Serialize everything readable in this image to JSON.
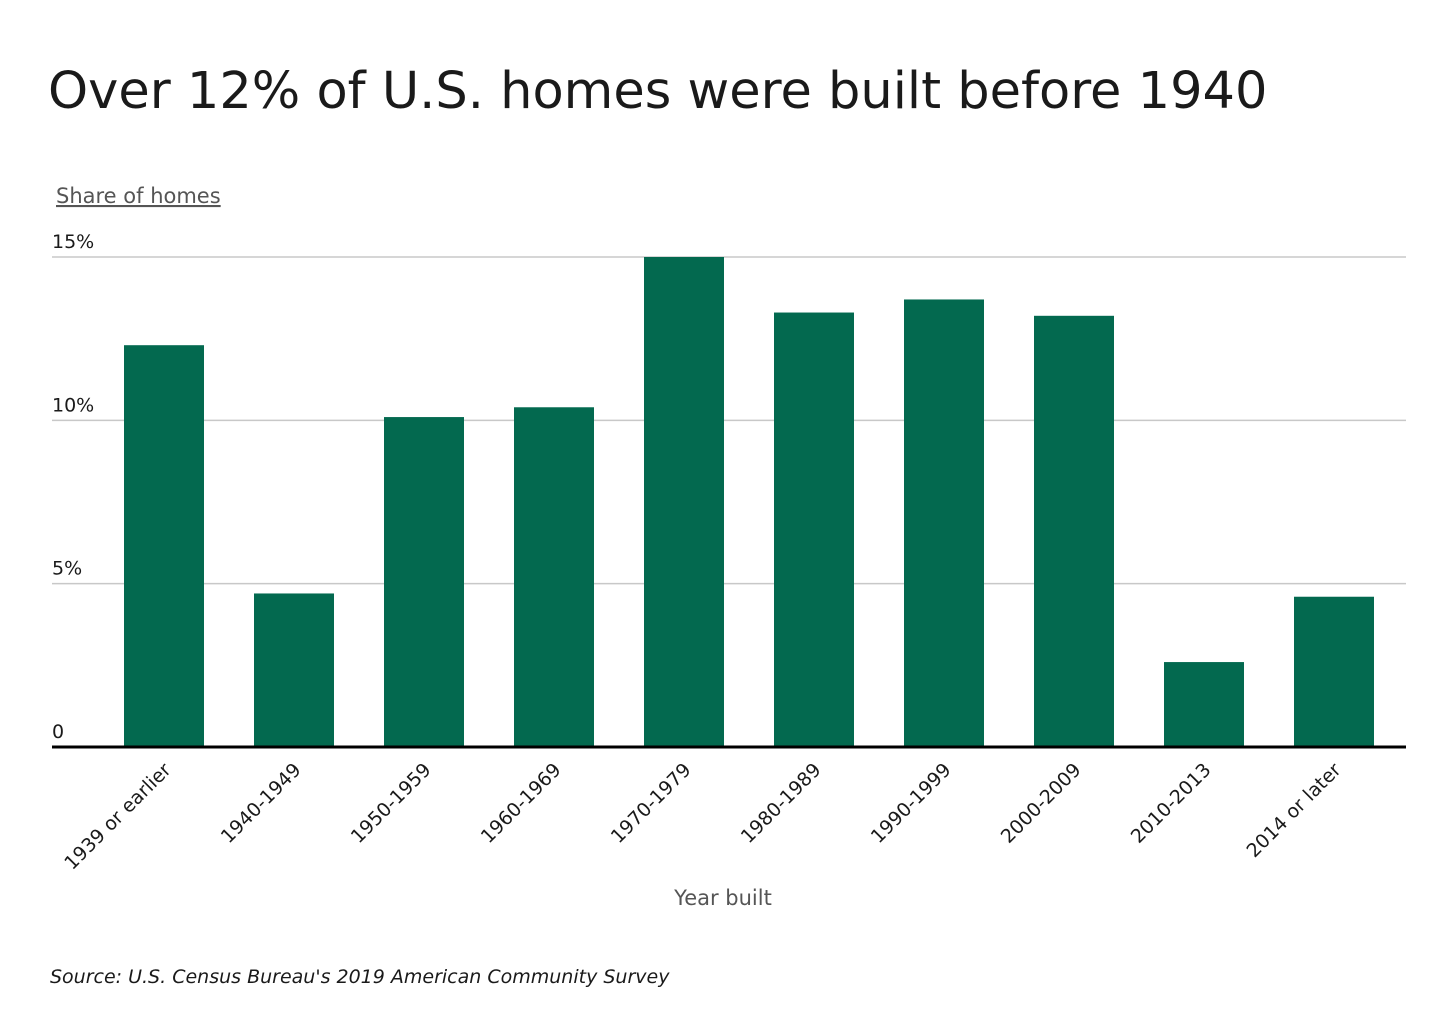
{
  "chart_data": {
    "type": "bar",
    "title": "Over 12% of U.S. homes were built before 1940",
    "y_label": "Share of homes",
    "x_label": "Year built",
    "source": "Source: U.S. Census Bureau's 2019 American Community Survey",
    "categories": [
      "1939 or earlier",
      "1940-1949",
      "1950-1959",
      "1960-1969",
      "1970-1979",
      "1980-1989",
      "1990-1999",
      "2000-2009",
      "2010-2013",
      "2014 or later"
    ],
    "values": [
      12.3,
      4.7,
      10.1,
      10.4,
      15.0,
      13.3,
      13.7,
      13.2,
      2.6,
      4.6
    ],
    "color": "#03694f",
    "ylim": [
      0,
      15
    ],
    "yticks": [
      0,
      {
        "value": 5,
        "label": "5%"
      },
      {
        "value": 10,
        "label": "10%"
      },
      {
        "value": 15,
        "label": "15%"
      }
    ],
    "grid": true
  }
}
